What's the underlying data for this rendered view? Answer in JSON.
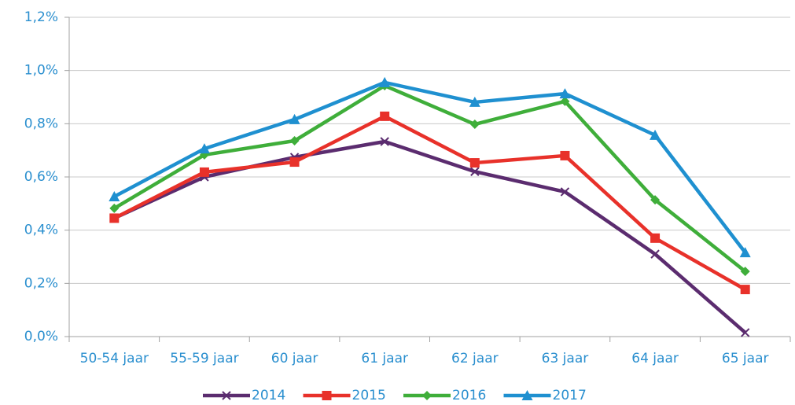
{
  "chart_data": {
    "type": "line",
    "categories": [
      "50-54 jaar",
      "55-59 jaar",
      "60 jaar",
      "61 jaar",
      "62 jaar",
      "63 jaar",
      "64 jaar",
      "65 jaar"
    ],
    "series": [
      {
        "name": "2014",
        "color": "#5b2c6f",
        "marker": "x",
        "values": [
          0.445,
          0.6,
          0.674,
          0.733,
          0.62,
          0.544,
          0.31,
          0.015
        ]
      },
      {
        "name": "2015",
        "color": "#e8312a",
        "marker": "square",
        "values": [
          0.445,
          0.618,
          0.656,
          0.828,
          0.653,
          0.68,
          0.37,
          0.177
        ]
      },
      {
        "name": "2016",
        "color": "#3fae3a",
        "marker": "diamond",
        "values": [
          0.482,
          0.683,
          0.736,
          0.943,
          0.798,
          0.884,
          0.514,
          0.245
        ]
      },
      {
        "name": "2017",
        "color": "#1f90d0",
        "marker": "triangle",
        "values": [
          0.526,
          0.706,
          0.816,
          0.955,
          0.881,
          0.913,
          0.757,
          0.316
        ]
      }
    ],
    "ylim": [
      0,
      1.2
    ],
    "yticks": [
      {
        "value": 0,
        "label": "0,0%"
      },
      {
        "value": 0.2,
        "label": "0,2%"
      },
      {
        "value": 0.4,
        "label": "0,4%"
      },
      {
        "value": 0.6,
        "label": "0,6%"
      },
      {
        "value": 0.8,
        "label": "0,8%"
      },
      {
        "value": 1.0,
        "label": "1,0%"
      },
      {
        "value": 1.2,
        "label": "1,2%"
      }
    ],
    "grid": true,
    "legend": "bottom"
  }
}
